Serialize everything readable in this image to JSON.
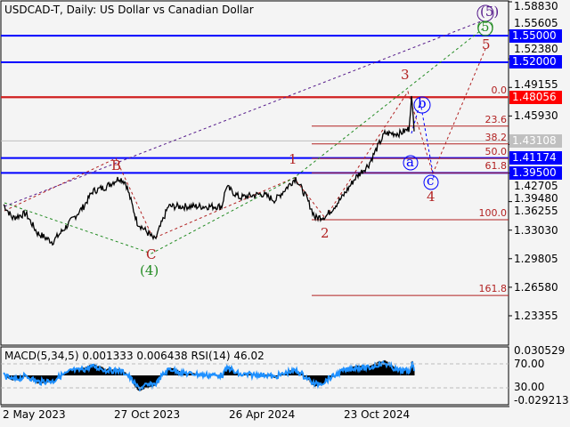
{
  "header": {
    "title": "USDCAD-T, Daily:  US Dollar vs Canadian Dollar"
  },
  "indicator": {
    "title": "MACD(5,34,5) 0.001333 0.006438 RSI(14) 46.02"
  },
  "colors": {
    "background": "#f4f4f4",
    "support_resistance": "#0000ff",
    "current_level": "#ff0000",
    "bid": "#c0c0c0",
    "fib": "#b22222",
    "rsi": "#1e90ff",
    "macd": "#000000"
  },
  "chart_data": {
    "type": "line",
    "symbol": "USDCAD-T",
    "timeframe": "Daily",
    "x_tick_labels": [
      "2 May 2023",
      "27 Oct 2023",
      "26 Apr 2024",
      "23 Oct 2024"
    ],
    "y_tick_labels": [
      "1.58830",
      "1.55605",
      "1.52380",
      "1.49155",
      "1.45930",
      "1.42705",
      "1.39480",
      "1.36255",
      "1.33030",
      "1.29805",
      "1.26580",
      "1.23355"
    ],
    "ylim": [
      1.215,
      1.5883
    ],
    "price_path": [
      [
        0,
        1.3592
      ],
      [
        10,
        1.3441
      ],
      [
        25,
        1.3491
      ],
      [
        38,
        1.327
      ],
      [
        55,
        1.317
      ],
      [
        70,
        1.334
      ],
      [
        90,
        1.3571
      ],
      [
        100,
        1.3742
      ],
      [
        115,
        1.3793
      ],
      [
        130,
        1.3893
      ],
      [
        137,
        1.3843
      ],
      [
        150,
        1.3391
      ],
      [
        170,
        1.319
      ],
      [
        185,
        1.3571
      ],
      [
        210,
        1.3571
      ],
      [
        245,
        1.3571
      ],
      [
        250,
        1.3793
      ],
      [
        265,
        1.3672
      ],
      [
        290,
        1.3712
      ],
      [
        305,
        1.3642
      ],
      [
        328,
        1.3893
      ],
      [
        340,
        1.3672
      ],
      [
        350,
        1.3441
      ],
      [
        362,
        1.3461
      ],
      [
        380,
        1.3672
      ],
      [
        395,
        1.3893
      ],
      [
        410,
        1.4044
      ],
      [
        420,
        1.4245
      ],
      [
        428,
        1.4396
      ],
      [
        445,
        1.4396
      ],
      [
        455,
        1.4446
      ],
      [
        458,
        1.4798
      ],
      [
        462,
        1.4345
      ]
    ],
    "price_tags": [
      {
        "label": "1.55000",
        "value": 1.55,
        "color": "#0000ff"
      },
      {
        "label": "1.52000",
        "value": 1.52,
        "color": "#0000ff"
      },
      {
        "label": "1.48056",
        "value": 1.48056,
        "color": "#ff0000"
      },
      {
        "label": "1.43108",
        "value": 1.43108,
        "color": "#c0c0c0"
      },
      {
        "label": "1.41174",
        "value": 1.41174,
        "color": "#0000ff"
      },
      {
        "label": "1.39500",
        "value": 1.395,
        "color": "#0000ff"
      }
    ],
    "fibonacci": [
      {
        "label": "0.0",
        "value": 1.48056
      },
      {
        "label": "23.6",
        "value": 1.4479
      },
      {
        "label": "38.2",
        "value": 1.4277
      },
      {
        "label": "50.0",
        "value": 1.4113
      },
      {
        "label": "61.8",
        "value": 1.395
      },
      {
        "label": "100.0",
        "value": 1.3421
      },
      {
        "label": "161.8",
        "value": 1.2565
      }
    ],
    "wave_labels": [
      "(5)",
      "5",
      "3",
      "b",
      "a",
      "c",
      "4",
      "1",
      "2",
      "B",
      "C",
      "(4)",
      "5"
    ],
    "indicator_axis": [
      "0.030529",
      "70.00",
      "30.00",
      "-0.029213"
    ],
    "macd": {
      "params": "5,34,5",
      "main": 0.001333,
      "signal": 0.006438
    },
    "rsi": {
      "period": 14,
      "value": 46.02
    }
  }
}
